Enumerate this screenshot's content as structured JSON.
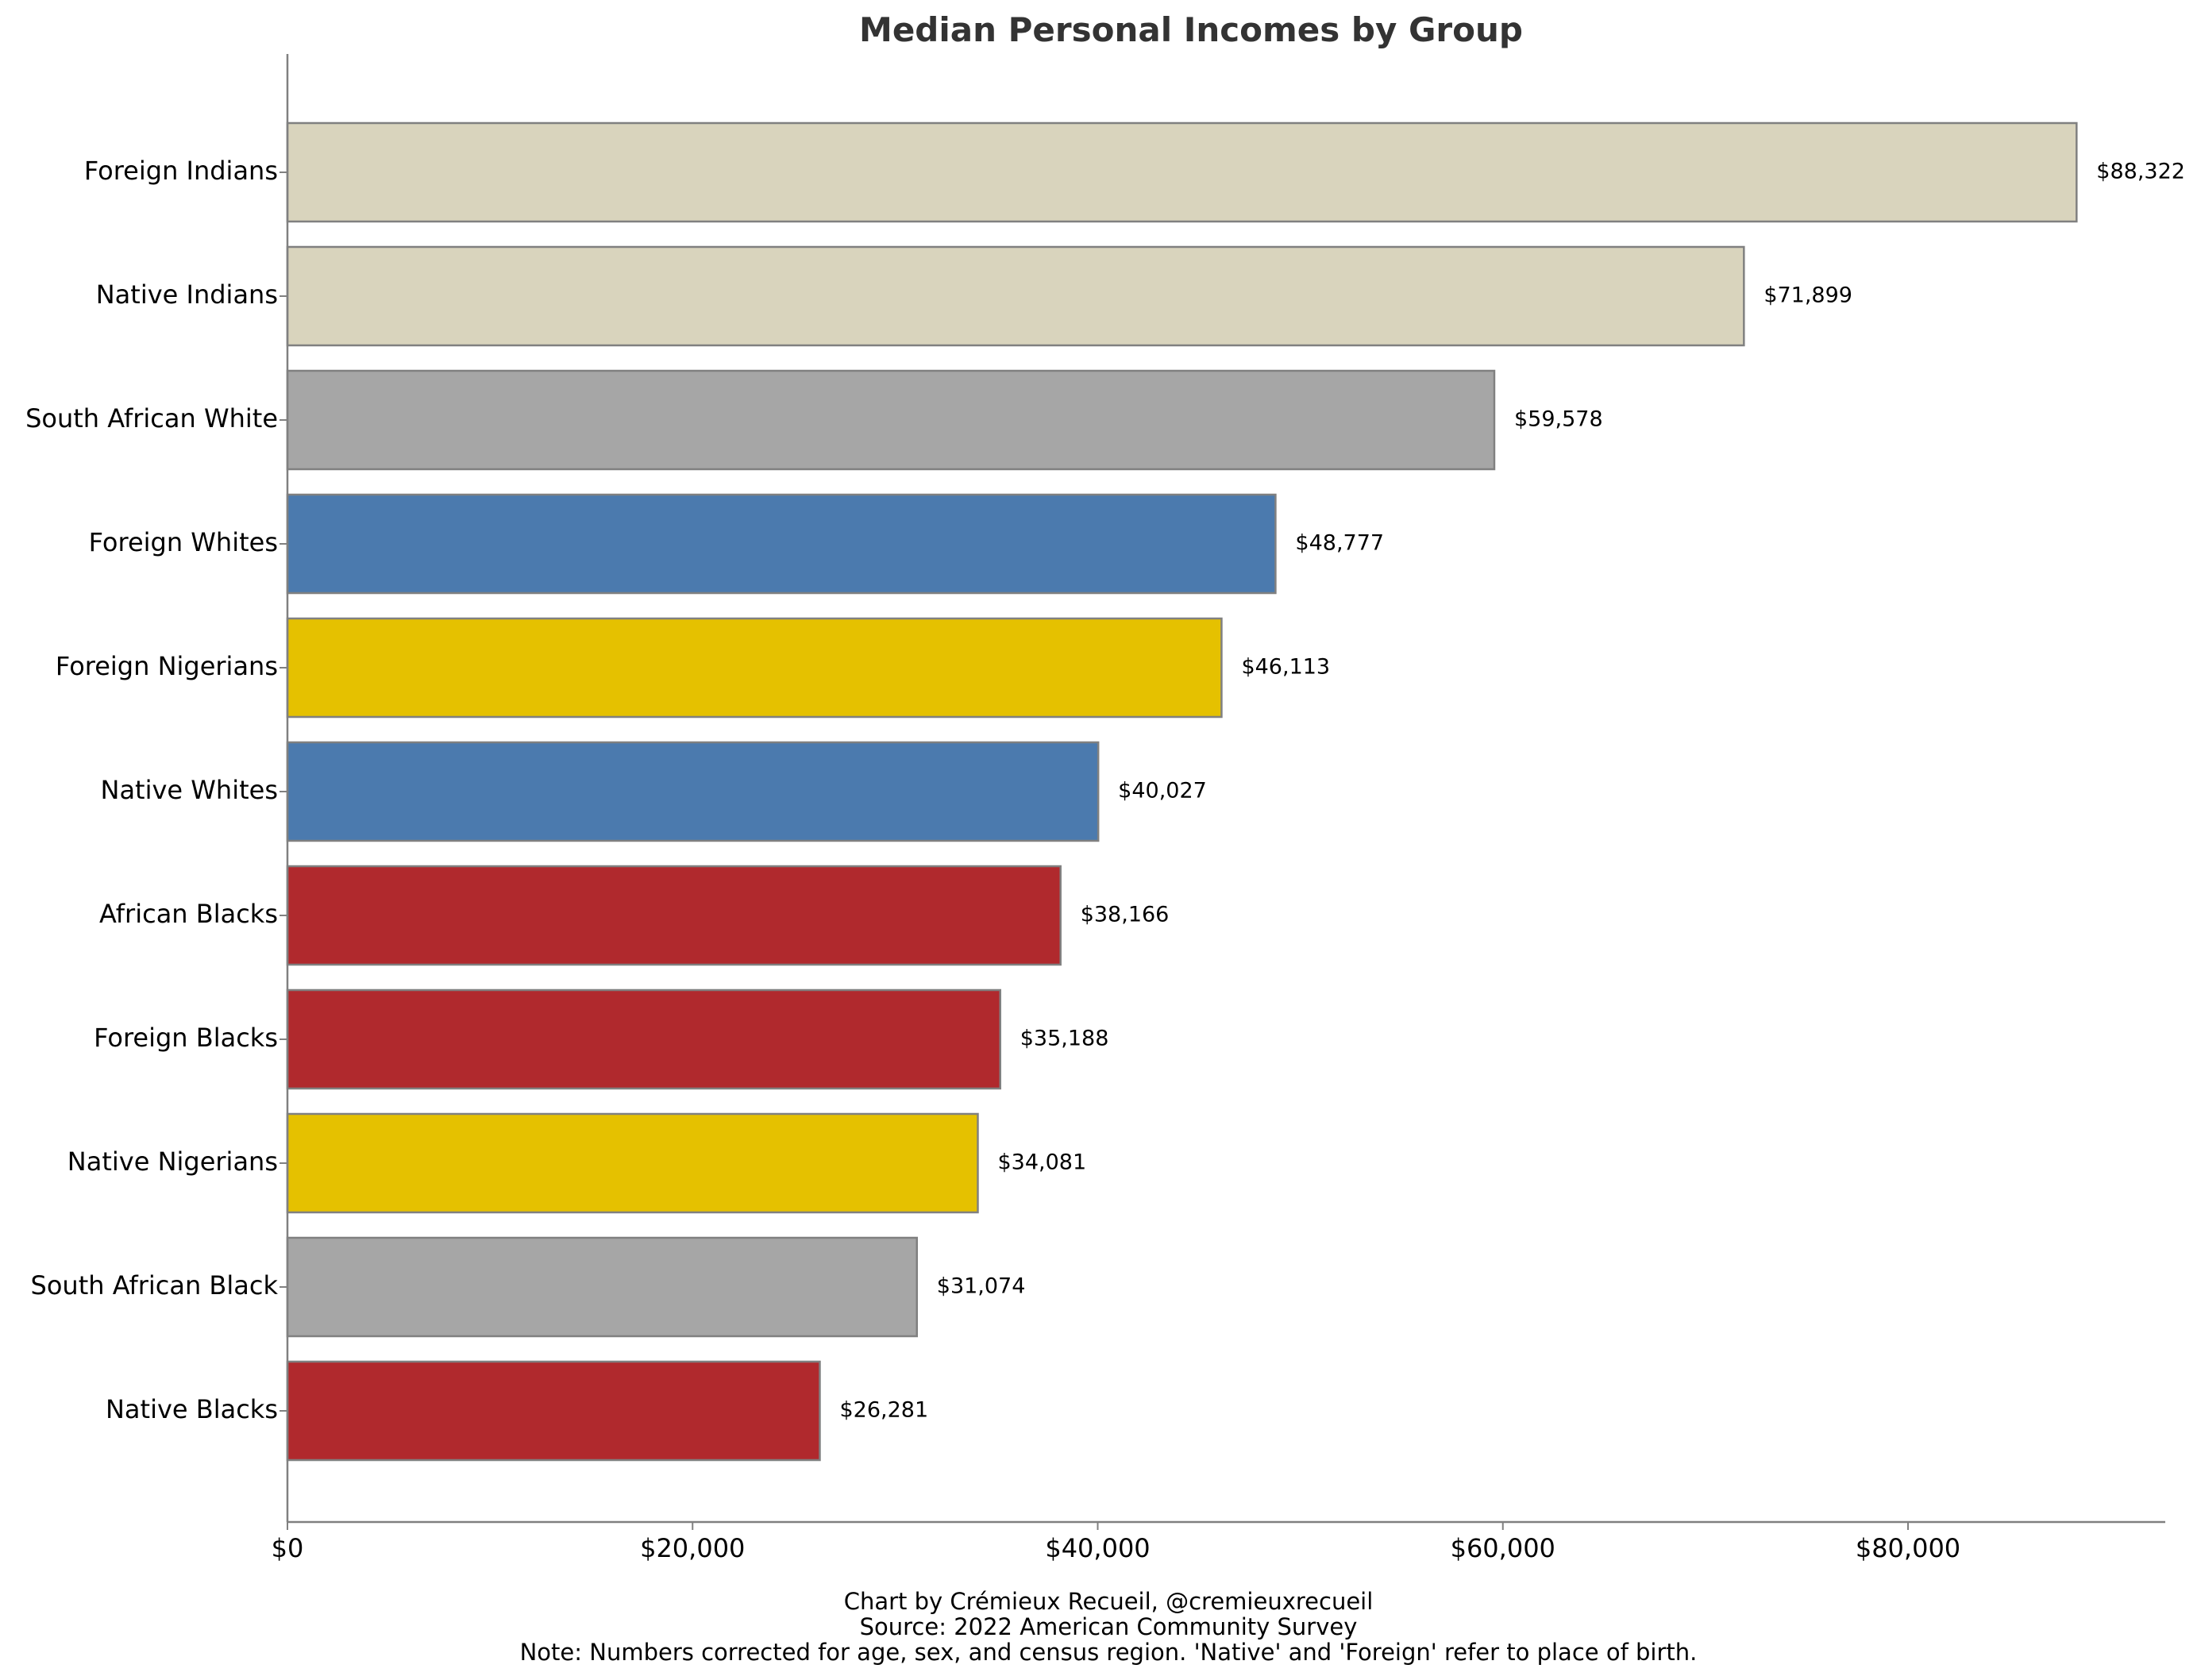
{
  "chart_data": {
    "type": "bar",
    "orientation": "horizontal",
    "title": "Median Personal Incomes by Group",
    "xlabel": "",
    "ylabel": "",
    "xlim": [
      0,
      92700
    ],
    "xticks": [
      0,
      20000,
      40000,
      60000,
      80000
    ],
    "xtick_labels": [
      "$0",
      "$20,000",
      "$40,000",
      "$60,000",
      "$80,000"
    ],
    "grid": false,
    "categories": [
      "Foreign Indians",
      "Native Indians",
      "South African White",
      "Foreign Whites",
      "Foreign Nigerians",
      "Native Whites",
      "African Blacks",
      "Foreign Blacks",
      "Native Nigerians",
      "South African Black",
      "Native Blacks"
    ],
    "values": [
      88322,
      71899,
      59578,
      48777,
      46113,
      40027,
      38166,
      35188,
      34081,
      31074,
      26281
    ],
    "value_labels": [
      "$88,322",
      "$71,899",
      "$59,578",
      "$48,777",
      "$46,113",
      "$40,027",
      "$38,166",
      "$35,188",
      "$34,081",
      "$31,074",
      "$26,281"
    ],
    "colors": [
      "#d9d4bd",
      "#d9d4bd",
      "#a6a6a6",
      "#4b7aae",
      "#e5c100",
      "#4b7aae",
      "#b0292d",
      "#b0292d",
      "#e5c100",
      "#a6a6a6",
      "#b0292d"
    ],
    "bar_edge_color": "#808080",
    "axis_color": "#808080",
    "footnotes": [
      "Chart by Crémieux Recueil, @cremieuxrecueil",
      "Source: 2022 American Community Survey",
      "Note: Numbers corrected for age, sex, and census region. 'Native' and 'Foreign' refer to place of birth."
    ]
  }
}
